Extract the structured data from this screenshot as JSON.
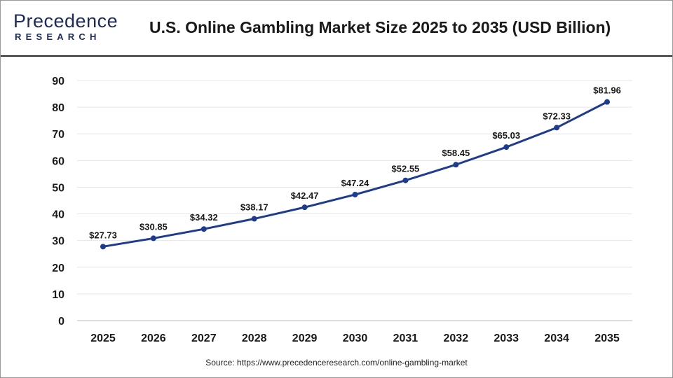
{
  "header": {
    "logo_line1": "Precedence",
    "logo_line2": "RESEARCH",
    "title": "U.S. Online Gambling Market Size 2025 to 2035 (USD Billion)"
  },
  "source": "Source: https://www.precedenceresearch.com/online-gambling-market",
  "colors": {
    "line": "#1f3b8f",
    "brand": "#1d2a5a",
    "grid": "#e6e6e6"
  },
  "chart_data": {
    "type": "line",
    "title": "U.S. Online Gambling Market Size 2025 to 2035 (USD Billion)",
    "xlabel": "",
    "ylabel": "",
    "categories": [
      "2025",
      "2026",
      "2027",
      "2028",
      "2029",
      "2030",
      "2031",
      "2032",
      "2033",
      "2034",
      "2035"
    ],
    "series": [
      {
        "values": [
          27.73,
          30.85,
          34.32,
          38.17,
          42.47,
          47.24,
          52.55,
          58.45,
          65.03,
          72.33,
          81.96
        ],
        "labels": [
          "$27.73",
          "$30.85",
          "$34.32",
          "$38.17",
          "$42.47",
          "$47.24",
          "$52.55",
          "$58.45",
          "$65.03",
          "$72.33",
          "$81.96"
        ]
      }
    ],
    "ylim": [
      0,
      90
    ],
    "yticks": [
      0,
      10,
      20,
      30,
      40,
      50,
      60,
      70,
      80,
      90
    ],
    "grid": true,
    "legend": "none"
  }
}
